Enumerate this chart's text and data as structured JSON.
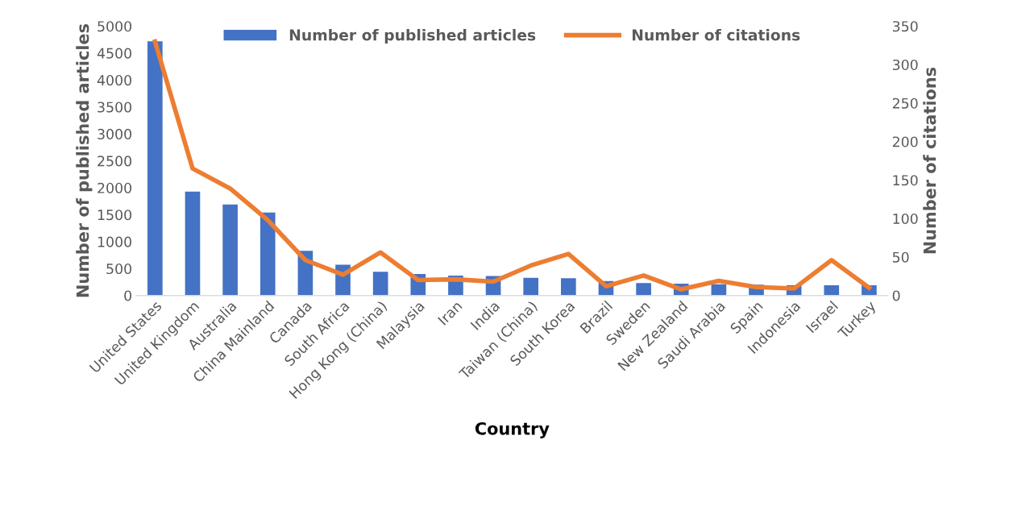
{
  "chart_data": {
    "type": "bar",
    "xlabel": "Country",
    "ylabel": "Number of published articles",
    "y2label": "Number of citations",
    "categories": [
      "United States",
      "United Kingdom",
      "Australia",
      "China Mainland",
      "Canada",
      "South Africa",
      "Hong Kong (China)",
      "Malaysia",
      "Iran",
      "India",
      "Taiwan (China)",
      "South Korea",
      "Brazil",
      "Sweden",
      "New Zealand",
      "Saudi Arabia",
      "Spain",
      "Indonesia",
      "Israel",
      "Turkey"
    ],
    "series": [
      {
        "name": "Number of published articles",
        "color": "#4472c4",
        "values": [
          4720,
          1930,
          1690,
          1540,
          830,
          570,
          440,
          400,
          370,
          360,
          330,
          320,
          270,
          230,
          220,
          210,
          200,
          190,
          190,
          190
        ]
      },
      {
        "name": "Number of citations",
        "type": "line",
        "axis": "y2",
        "color": "#ed7d31",
        "values": [
          330,
          165,
          139,
          98,
          46,
          27,
          56,
          20,
          21,
          18,
          39,
          54,
          12,
          26,
          8,
          19,
          11,
          9,
          46,
          10
        ]
      }
    ],
    "ylim": [
      0,
      5000
    ],
    "yticks": [
      0,
      500,
      1000,
      1500,
      2000,
      2500,
      3000,
      3500,
      4000,
      4500,
      5000
    ],
    "y2lim": [
      0,
      350
    ],
    "y2ticks": [
      0,
      50,
      100,
      150,
      200,
      250,
      300,
      350
    ],
    "legend": "top",
    "grid": false,
    "marker": "none",
    "line_style": "solid"
  }
}
